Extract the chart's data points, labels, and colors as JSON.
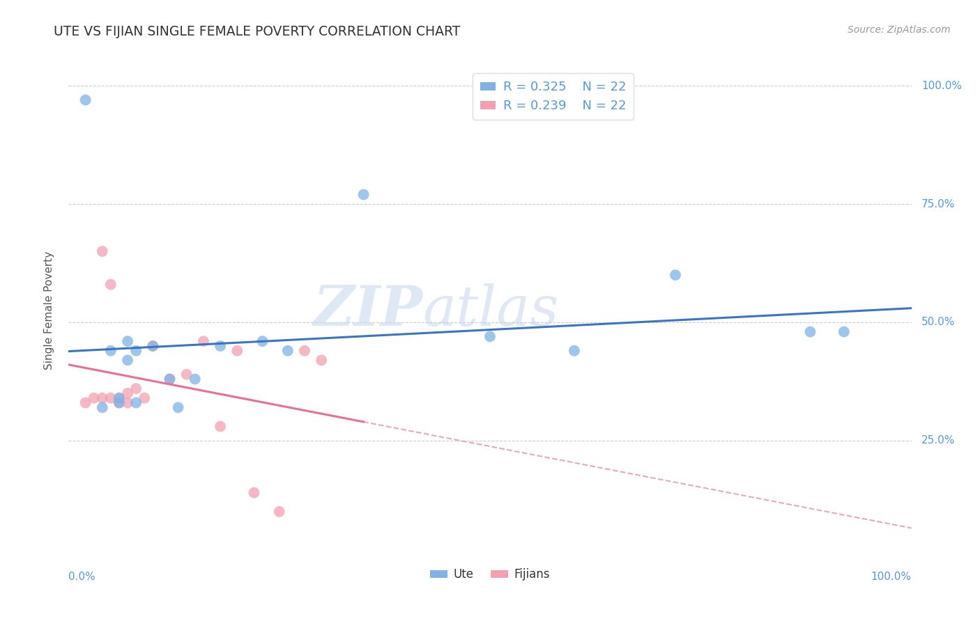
{
  "title": "UTE VS FIJIAN SINGLE FEMALE POVERTY CORRELATION CHART",
  "source": "Source: ZipAtlas.com",
  "ylabel": "Single Female Poverty",
  "xlim": [
    0.0,
    1.0
  ],
  "ylim": [
    0.0,
    1.05
  ],
  "legend_R_ute": "R = 0.325",
  "legend_N_ute": "N = 22",
  "legend_R_fij": "R = 0.239",
  "legend_N_fij": "N = 22",
  "ute_color": "#7EB3E8",
  "fijian_color": "#F4A0B0",
  "ute_line_color": "#3A75C4",
  "fijian_line_color": "#E87090",
  "watermark_zip": "ZIP",
  "watermark_atlas": "atlas",
  "ute_x": [
    0.02,
    0.04,
    0.05,
    0.06,
    0.06,
    0.07,
    0.07,
    0.08,
    0.08,
    0.1,
    0.12,
    0.13,
    0.15,
    0.18,
    0.23,
    0.26,
    0.35,
    0.5,
    0.6,
    0.72,
    0.88,
    0.92
  ],
  "ute_y": [
    0.97,
    0.32,
    0.44,
    0.33,
    0.34,
    0.42,
    0.46,
    0.33,
    0.44,
    0.45,
    0.38,
    0.32,
    0.38,
    0.45,
    0.46,
    0.44,
    0.77,
    0.47,
    0.44,
    0.6,
    0.48,
    0.48
  ],
  "fijian_x": [
    0.02,
    0.03,
    0.04,
    0.04,
    0.05,
    0.05,
    0.06,
    0.06,
    0.07,
    0.07,
    0.08,
    0.09,
    0.1,
    0.12,
    0.14,
    0.16,
    0.18,
    0.2,
    0.22,
    0.25,
    0.28,
    0.3
  ],
  "fijian_y": [
    0.33,
    0.34,
    0.34,
    0.65,
    0.34,
    0.58,
    0.33,
    0.34,
    0.33,
    0.35,
    0.36,
    0.34,
    0.45,
    0.38,
    0.39,
    0.46,
    0.28,
    0.44,
    0.14,
    0.1,
    0.44,
    0.42
  ],
  "background_color": "#FFFFFF",
  "grid_color": "#CCCCCC",
  "ytick_vals": [
    0.25,
    0.5,
    0.75,
    1.0
  ],
  "ytick_labels": [
    "25.0%",
    "50.0%",
    "75.0%",
    "100.0%"
  ],
  "axis_label_color": "#5599DD",
  "title_color": "#333333",
  "source_color": "#999999"
}
